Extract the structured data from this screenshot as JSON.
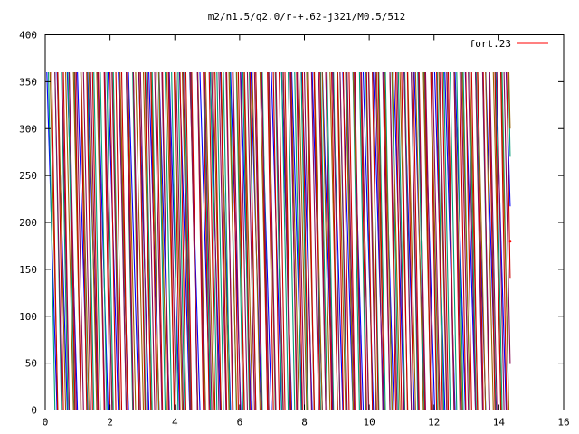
{
  "chart_data": {
    "type": "line",
    "title": "m2/n1.5/q2.0/r-+.62-j321/M0.5/512",
    "xlabel": "",
    "ylabel": "",
    "xlim": [
      0,
      16
    ],
    "ylim": [
      0,
      400
    ],
    "x_ticks": [
      0,
      2,
      4,
      6,
      8,
      10,
      12,
      14,
      16
    ],
    "y_ticks": [
      0,
      50,
      100,
      150,
      200,
      250,
      300,
      350,
      400
    ],
    "legend_position": "top-right",
    "grid": false,
    "series": [
      {
        "name": "fort.23",
        "color": "#ff0000",
        "angle_wrap": 360,
        "x_end": 14.35,
        "y_end": 180,
        "traces": [
          {
            "t0": 0.05,
            "period": 0.315,
            "color": "#0000ff"
          },
          {
            "t0": 0.1,
            "period": 0.2,
            "color": "#009e73"
          },
          {
            "t0": 0.15,
            "period": 0.24,
            "color": "#9a6200"
          },
          {
            "t0": 0.2,
            "period": 0.18,
            "color": "#cc0000"
          },
          {
            "t0": 0.3,
            "period": 0.22,
            "color": "#8a0a5a"
          }
        ]
      }
    ]
  },
  "colors": {
    "frame": "#000000",
    "background": "#ffffff"
  }
}
